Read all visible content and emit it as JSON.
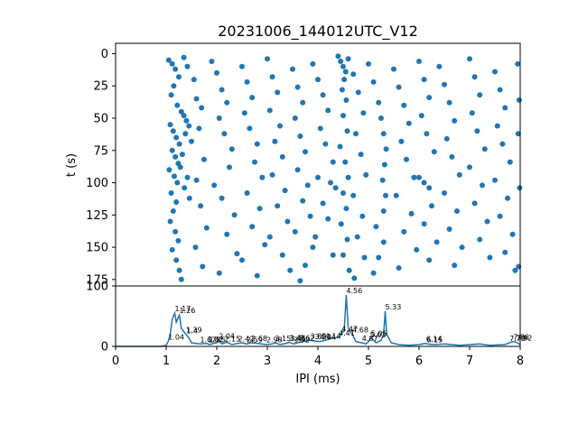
{
  "chart_data": [
    {
      "type": "scatter",
      "title": "20231006_144012UTC_V12",
      "xlabel": "",
      "ylabel": "t (s)",
      "xlim": [
        0,
        8
      ],
      "ylim": [
        180,
        -8
      ],
      "y_inverted": true,
      "yticks": [
        0,
        25,
        50,
        75,
        100,
        125,
        150,
        175
      ],
      "xticks": [
        0,
        1,
        2,
        3,
        4,
        5,
        6,
        7,
        8
      ],
      "marker_color": "#1f77b4",
      "grid": false,
      "points_note": "dense raster; values listed as [ipi_ms, t_s]",
      "points": [
        [
          1.05,
          5
        ],
        [
          1.12,
          8
        ],
        [
          1.18,
          12
        ],
        [
          1.25,
          18
        ],
        [
          1.35,
          3
        ],
        [
          1.42,
          10
        ],
        [
          1.15,
          25
        ],
        [
          1.1,
          32
        ],
        [
          1.22,
          40
        ],
        [
          1.3,
          45
        ],
        [
          1.08,
          55
        ],
        [
          1.14,
          60
        ],
        [
          1.2,
          65
        ],
        [
          1.26,
          70
        ],
        [
          1.12,
          75
        ],
        [
          1.18,
          80
        ],
        [
          1.24,
          85
        ],
        [
          1.06,
          90
        ],
        [
          1.16,
          95
        ],
        [
          1.22,
          100
        ],
        [
          1.1,
          108
        ],
        [
          1.2,
          115
        ],
        [
          1.14,
          122
        ],
        [
          1.08,
          130
        ],
        [
          1.18,
          138
        ],
        [
          1.24,
          145
        ],
        [
          1.12,
          152
        ],
        [
          1.2,
          160
        ],
        [
          1.26,
          168
        ],
        [
          1.3,
          175
        ],
        [
          1.35,
          48
        ],
        [
          1.4,
          52
        ],
        [
          1.45,
          56
        ],
        [
          1.38,
          62
        ],
        [
          1.5,
          68
        ],
        [
          1.32,
          78
        ],
        [
          1.28,
          88
        ],
        [
          1.42,
          96
        ],
        [
          1.36,
          104
        ],
        [
          1.46,
          112
        ],
        [
          1.55,
          20
        ],
        [
          1.6,
          35
        ],
        [
          1.7,
          42
        ],
        [
          1.65,
          58
        ],
        [
          1.75,
          82
        ],
        [
          1.6,
          98
        ],
        [
          1.68,
          118
        ],
        [
          1.8,
          135
        ],
        [
          1.58,
          150
        ],
        [
          1.72,
          165
        ],
        [
          1.9,
          6
        ],
        [
          2.0,
          15
        ],
        [
          2.1,
          28
        ],
        [
          2.2,
          38
        ],
        [
          2.05,
          50
        ],
        [
          2.15,
          62
        ],
        [
          2.3,
          74
        ],
        [
          2.25,
          88
        ],
        [
          1.95,
          102
        ],
        [
          2.1,
          112
        ],
        [
          2.35,
          125
        ],
        [
          2.2,
          140
        ],
        [
          2.4,
          155
        ],
        [
          2.05,
          170
        ],
        [
          2.5,
          10
        ],
        [
          2.6,
          22
        ],
        [
          2.7,
          34
        ],
        [
          2.55,
          46
        ],
        [
          2.65,
          58
        ],
        [
          2.8,
          70
        ],
        [
          2.75,
          84
        ],
        [
          2.9,
          96
        ],
        [
          2.6,
          108
        ],
        [
          2.85,
          120
        ],
        [
          2.7,
          134
        ],
        [
          2.95,
          148
        ],
        [
          2.5,
          160
        ],
        [
          2.8,
          172
        ],
        [
          3.0,
          4
        ],
        [
          3.1,
          18
        ],
        [
          3.2,
          30
        ],
        [
          3.05,
          44
        ],
        [
          3.25,
          56
        ],
        [
          3.15,
          68
        ],
        [
          3.3,
          80
        ],
        [
          3.1,
          94
        ],
        [
          3.35,
          106
        ],
        [
          3.2,
          118
        ],
        [
          3.4,
          130
        ],
        [
          3.05,
          142
        ],
        [
          3.3,
          156
        ],
        [
          3.45,
          168
        ],
        [
          3.5,
          12
        ],
        [
          3.6,
          26
        ],
        [
          3.7,
          38
        ],
        [
          3.55,
          50
        ],
        [
          3.65,
          64
        ],
        [
          3.75,
          76
        ],
        [
          3.6,
          90
        ],
        [
          3.8,
          102
        ],
        [
          3.7,
          114
        ],
        [
          3.85,
          126
        ],
        [
          3.55,
          138
        ],
        [
          3.9,
          150
        ],
        [
          3.75,
          164
        ],
        [
          3.65,
          176
        ],
        [
          3.9,
          8
        ],
        [
          4.0,
          20
        ],
        [
          4.1,
          32
        ],
        [
          4.2,
          44
        ],
        [
          4.05,
          58
        ],
        [
          4.15,
          70
        ],
        [
          4.3,
          84
        ],
        [
          4.0,
          96
        ],
        [
          4.25,
          100
        ],
        [
          4.35,
          104
        ],
        [
          4.1,
          116
        ],
        [
          4.2,
          128
        ],
        [
          3.95,
          142
        ],
        [
          4.3,
          156
        ],
        [
          4.4,
          2
        ],
        [
          4.45,
          6
        ],
        [
          4.5,
          10
        ],
        [
          4.55,
          14
        ],
        [
          4.6,
          4
        ],
        [
          4.52,
          20
        ],
        [
          4.48,
          28
        ],
        [
          4.56,
          36
        ],
        [
          4.5,
          48
        ],
        [
          4.58,
          60
        ],
        [
          4.44,
          72
        ],
        [
          4.54,
          84
        ],
        [
          4.6,
          96
        ],
        [
          4.5,
          108
        ],
        [
          4.56,
          120
        ],
        [
          4.46,
          132
        ],
        [
          4.58,
          144
        ],
        [
          4.5,
          156
        ],
        [
          4.62,
          168
        ],
        [
          4.7,
          16
        ],
        [
          4.8,
          30
        ],
        [
          4.9,
          46
        ],
        [
          4.75,
          62
        ],
        [
          4.85,
          78
        ],
        [
          4.95,
          94
        ],
        [
          4.7,
          110
        ],
        [
          4.88,
          126
        ],
        [
          4.78,
          142
        ],
        [
          4.92,
          158
        ],
        [
          4.72,
          174
        ],
        [
          5.0,
          8
        ],
        [
          5.1,
          22
        ],
        [
          5.2,
          38
        ],
        [
          5.25,
          50
        ],
        [
          5.3,
          62
        ],
        [
          5.35,
          74
        ],
        [
          5.32,
          86
        ],
        [
          5.28,
          98
        ],
        [
          5.34,
          110
        ],
        [
          5.3,
          122
        ],
        [
          5.15,
          134
        ],
        [
          5.3,
          146
        ],
        [
          5.2,
          158
        ],
        [
          5.1,
          170
        ],
        [
          5.5,
          12
        ],
        [
          5.6,
          26
        ],
        [
          5.7,
          40
        ],
        [
          5.8,
          54
        ],
        [
          5.65,
          68
        ],
        [
          5.75,
          82
        ],
        [
          5.9,
          96
        ],
        [
          5.55,
          110
        ],
        [
          5.85,
          124
        ],
        [
          5.7,
          138
        ],
        [
          5.95,
          152
        ],
        [
          5.6,
          166
        ],
        [
          6.0,
          6
        ],
        [
          6.1,
          20
        ],
        [
          6.2,
          34
        ],
        [
          6.05,
          48
        ],
        [
          6.15,
          62
        ],
        [
          6.3,
          76
        ],
        [
          6.0,
          96
        ],
        [
          6.1,
          100
        ],
        [
          6.2,
          104
        ],
        [
          6.25,
          118
        ],
        [
          6.1,
          132
        ],
        [
          6.35,
          146
        ],
        [
          6.2,
          160
        ],
        [
          6.4,
          10
        ],
        [
          6.5,
          24
        ],
        [
          6.6,
          38
        ],
        [
          6.7,
          52
        ],
        [
          6.55,
          66
        ],
        [
          6.65,
          80
        ],
        [
          6.8,
          94
        ],
        [
          6.5,
          108
        ],
        [
          6.75,
          122
        ],
        [
          6.6,
          136
        ],
        [
          6.85,
          150
        ],
        [
          6.7,
          164
        ],
        [
          7.0,
          4
        ],
        [
          7.1,
          18
        ],
        [
          7.2,
          32
        ],
        [
          7.05,
          46
        ],
        [
          7.15,
          60
        ],
        [
          7.3,
          74
        ],
        [
          7.0,
          88
        ],
        [
          7.25,
          102
        ],
        [
          7.1,
          116
        ],
        [
          7.35,
          130
        ],
        [
          7.2,
          144
        ],
        [
          7.4,
          158
        ],
        [
          7.5,
          14
        ],
        [
          7.6,
          28
        ],
        [
          7.7,
          42
        ],
        [
          7.55,
          56
        ],
        [
          7.65,
          70
        ],
        [
          7.8,
          84
        ],
        [
          7.5,
          98
        ],
        [
          7.75,
          112
        ],
        [
          7.6,
          126
        ],
        [
          7.85,
          140
        ],
        [
          7.7,
          154
        ],
        [
          7.9,
          168
        ],
        [
          7.95,
          8
        ],
        [
          7.98,
          36
        ],
        [
          7.96,
          62
        ],
        [
          7.99,
          104
        ],
        [
          7.97,
          165
        ]
      ]
    },
    {
      "type": "line",
      "xlabel": "IPI (ms)",
      "ylabel": "",
      "xlim": [
        0,
        8
      ],
      "ylim": [
        0,
        100
      ],
      "yticks": [
        0,
        100
      ],
      "xticks": [
        0,
        1,
        2,
        3,
        4,
        5,
        6,
        7,
        8
      ],
      "line_color": "#1f77b4",
      "grid": false,
      "x": [
        0,
        0.9,
        1.0,
        1.04,
        1.08,
        1.12,
        1.17,
        1.2,
        1.26,
        1.3,
        1.39,
        1.45,
        1.5,
        1.67,
        1.8,
        1.85,
        2.0,
        2.04,
        2.1,
        2.2,
        2.3,
        2.42,
        2.5,
        2.59,
        2.68,
        2.8,
        2.98,
        3.1,
        3.15,
        3.25,
        3.38,
        3.43,
        3.52,
        3.6,
        3.7,
        3.85,
        3.94,
        4.04,
        4.14,
        4.3,
        4.41,
        4.47,
        4.52,
        4.56,
        4.6,
        4.68,
        4.75,
        4.87,
        4.95,
        5.0,
        5.05,
        5.15,
        5.25,
        5.3,
        5.33,
        5.36,
        5.45,
        5.6,
        5.8,
        6.0,
        6.14,
        6.15,
        6.3,
        6.5,
        6.8,
        7.0,
        7.2,
        7.4,
        7.7,
        7.79,
        7.86,
        7.92,
        8.0
      ],
      "y": [
        0,
        0,
        2,
        8,
        20,
        45,
        55,
        40,
        52,
        30,
        20,
        14,
        6,
        4,
        5,
        3,
        6,
        10,
        4,
        7,
        3,
        5,
        6,
        4,
        6,
        5,
        3,
        4,
        6,
        3,
        5,
        7,
        4,
        6,
        8,
        10,
        9,
        8,
        10,
        14,
        15,
        22,
        26,
        85,
        30,
        20,
        8,
        6,
        4,
        8,
        14,
        6,
        10,
        20,
        58,
        20,
        6,
        3,
        2,
        3,
        5,
        4,
        3,
        4,
        2,
        3,
        4,
        2,
        3,
        6,
        8,
        7,
        3
      ],
      "annotations": [
        "1.17",
        "1.26",
        "1.04",
        "1.39",
        "1.4",
        "1.67",
        "1.82",
        "1.85",
        "2.04",
        "2.15",
        "2.42",
        "2.59",
        "2.68",
        "2.98",
        "3.15",
        "3.43",
        "3.45",
        "3.52",
        "3.62",
        "3.85",
        "3.94",
        "4.04",
        "4.14",
        "4.41",
        "4.47",
        "4.56",
        "4.68",
        "4.87",
        "5.03",
        "5.05",
        "5.33",
        "6.14",
        "6.15",
        "7.79",
        "7.86",
        "7.92"
      ]
    }
  ]
}
